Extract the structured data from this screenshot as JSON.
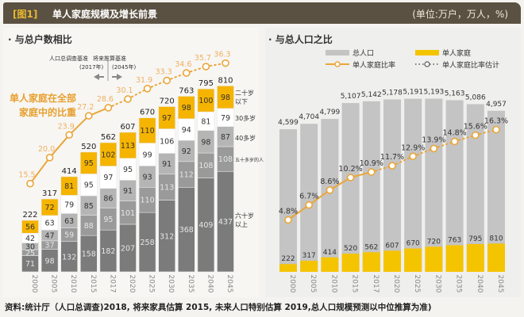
{
  "header": {
    "tag": "[图1]",
    "title": "单人家庭规模及增长前景",
    "unit": "(单位:万户，万人，%)"
  },
  "footer": "资料:统计厅（人口总调查)2018, 将来家具估算  2015, 未来人口特别估算  2019,总人口规模预测以中位推算为准)",
  "chart_data": [
    {
      "type": "bar",
      "stacked": true,
      "title": "· 与总户数相比",
      "categories": [
        "2000",
        "2005",
        "2010",
        "2015",
        "2017",
        "2020",
        "2025",
        "2030",
        "2035",
        "2040",
        "2045"
      ],
      "series": [
        {
          "name": "六十岁以上",
          "color": "#7b7b7b",
          "values": [
            71,
            98,
            132,
            158,
            182,
            207,
            258,
            312,
            368,
            409,
            437
          ]
        },
        {
          "name": "五十多岁的人",
          "color": "#9a9a9a",
          "values": [
            25,
            37,
            59,
            88,
            95,
            101,
            110,
            113,
            112,
            108,
            108
          ]
        },
        {
          "name": "40多岁",
          "color": "#b5b5b5",
          "values": [
            30,
            47,
            63,
            85,
            86,
            91,
            93,
            91,
            92,
            98,
            87
          ]
        },
        {
          "name": "30多岁",
          "color": "#ffffff",
          "values": [
            42,
            63,
            79,
            95,
            97,
            95,
            99,
            106,
            94,
            81,
            79
          ]
        },
        {
          "name": "二十岁以下",
          "color": "#f5b400",
          "values": [
            56,
            72,
            81,
            95,
            102,
            113,
            110,
            97,
            98,
            100,
            98
          ]
        }
      ],
      "totals": [
        222,
        317,
        414,
        520,
        562,
        607,
        670,
        720,
        763,
        795,
        810
      ],
      "line": {
        "name": "单人家庭在全部家庭中的比重",
        "values": [
          15.5,
          20.0,
          23.9,
          27.2,
          28.6,
          30.1,
          31.9,
          33.3,
          34.6,
          35.7,
          36.3
        ],
        "estimate_from": "2017",
        "color": "#eaa63a"
      },
      "annotation": {
        "left": "人口总调查基准",
        "left_year": "(2017年)",
        "right": "将来推算基准",
        "right_year": "(2045年)"
      }
    },
    {
      "type": "bar",
      "title": "· 与总人口之比",
      "categories": [
        "2000",
        "2005",
        "2010",
        "2015",
        "2017",
        "2020",
        "2025",
        "2030",
        "2035",
        "2040",
        "2045"
      ],
      "series": [
        {
          "name": "总人口",
          "color": "#c4c4c4",
          "values": [
            4599,
            4704,
            4799,
            5107,
            5142,
            5178,
            5191,
            5193,
            5163,
            5086,
            4957
          ],
          "labels": [
            "4,599",
            "4,704",
            "4,799",
            "5,107",
            "5,142",
            "5,178",
            "5,191",
            "5,193",
            "5,163",
            "5,086",
            "4,957"
          ]
        },
        {
          "name": "单人家庭",
          "color": "#f5c400",
          "values": [
            222,
            317,
            414,
            520,
            562,
            607,
            670,
            720,
            763,
            795,
            810
          ]
        }
      ],
      "line": {
        "name": "单人家庭比率",
        "estimate_name": "单人家庭比率估计",
        "values": [
          4.8,
          6.7,
          8.6,
          10.2,
          10.9,
          11.7,
          12.9,
          13.9,
          14.8,
          15.6,
          16.3
        ],
        "unit": "%",
        "estimate_from": "2017",
        "color": "#eaa63a"
      }
    }
  ]
}
